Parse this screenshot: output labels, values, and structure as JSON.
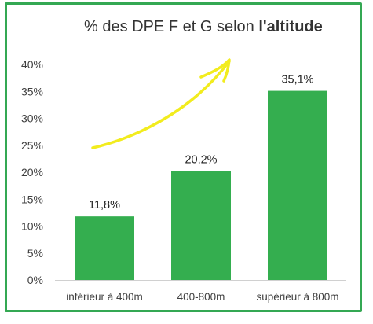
{
  "chart_data": {
    "type": "bar",
    "title_prefix": "% des DPE F et G selon ",
    "title_bold": "l'altitude",
    "categories": [
      "inférieur à 400m",
      "400-800m",
      "supérieur à 800m"
    ],
    "values": [
      11.8,
      20.2,
      35.1
    ],
    "data_labels": [
      "11,8%",
      "20,2%",
      "35,1%"
    ],
    "y_ticks": [
      "0%",
      "5%",
      "10%",
      "15%",
      "20%",
      "25%",
      "30%",
      "35%",
      "40%"
    ],
    "ylim": [
      0,
      40
    ],
    "xlabel": "",
    "ylabel": "",
    "grid": false,
    "legend": "none",
    "bar_color": "#34ae4f",
    "frame_color": "#34a853",
    "annotation": {
      "type": "arrow",
      "color": "#f2ec1e",
      "direction": "up-right"
    }
  }
}
